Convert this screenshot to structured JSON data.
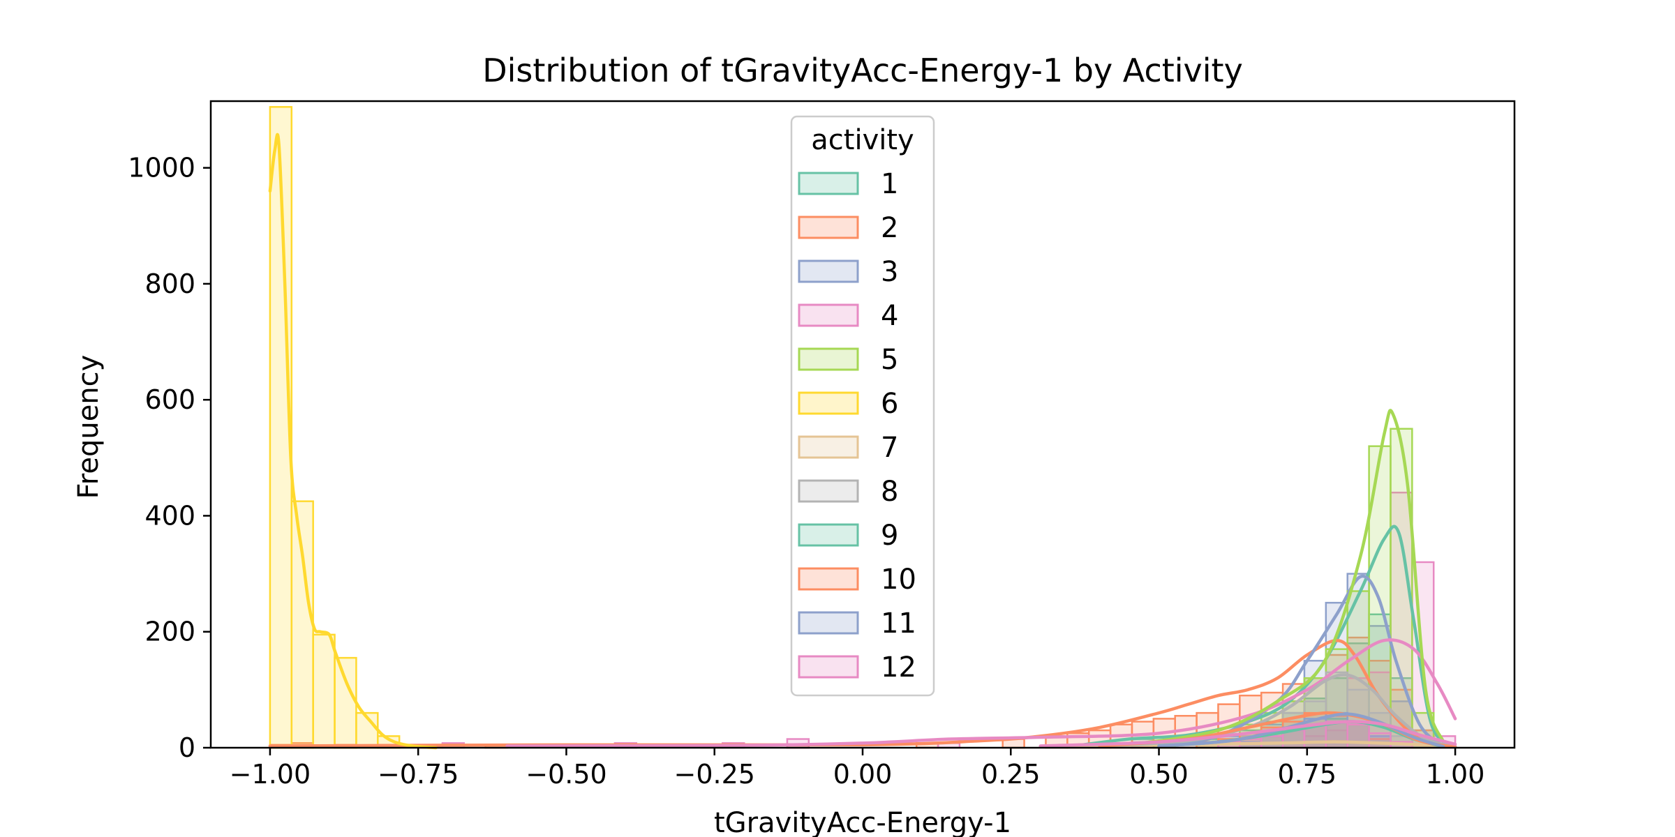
{
  "chart_data": {
    "type": "histogram",
    "title": "Distribution of tGravityAcc-Energy-1 by Activity",
    "xlabel": "tGravityAcc-Energy-1",
    "ylabel": "Frequency",
    "xlim": [
      -1.1,
      1.1
    ],
    "ylim": [
      0,
      1115
    ],
    "xticks": [
      -1.0,
      -0.75,
      -0.5,
      -0.25,
      0.0,
      0.25,
      0.5,
      0.75,
      1.0
    ],
    "xtick_labels": [
      "−1.00",
      "−0.75",
      "−0.50",
      "−0.25",
      "0.00",
      "0.25",
      "0.50",
      "0.75",
      "1.00"
    ],
    "yticks": [
      0,
      200,
      400,
      600,
      800,
      1000
    ],
    "ytick_labels": [
      "0",
      "200",
      "400",
      "600",
      "800",
      "1000"
    ],
    "bin_edges_range": [
      -1.0,
      1.0
    ],
    "bin_count": 55,
    "legend": {
      "title": "activity",
      "position": "upper center"
    },
    "kde": true,
    "series": [
      {
        "name": "1",
        "color": "#66c2a5",
        "bins": {
          "40": 15,
          "41": 12,
          "43": 15,
          "44": 20,
          "45": 30,
          "46": 45,
          "47": 60,
          "48": 85,
          "49": 120,
          "50": 180,
          "51": 230,
          "52": 120,
          "53": 30,
          "54": 5
        },
        "kde": [
          [
            0.35,
            2
          ],
          [
            0.45,
            15
          ],
          [
            0.55,
            22
          ],
          [
            0.65,
            45
          ],
          [
            0.72,
            80
          ],
          [
            0.78,
            150
          ],
          [
            0.84,
            270
          ],
          [
            0.88,
            360
          ],
          [
            0.905,
            370
          ],
          [
            0.93,
            220
          ],
          [
            0.96,
            40
          ],
          [
            1.0,
            2
          ]
        ]
      },
      {
        "name": "2",
        "color": "#fc8d62",
        "bins": {
          "0": 5,
          "1": 8,
          "3": 5,
          "5": 5,
          "7": 5,
          "10": 5,
          "20": 5,
          "24": 5,
          "30": 8,
          "34": 15,
          "36": 20,
          "37": 25,
          "38": 30,
          "39": 40,
          "40": 45,
          "41": 50,
          "42": 55,
          "43": 60,
          "44": 75,
          "45": 90,
          "46": 95,
          "47": 110,
          "48": 120,
          "49": 160,
          "50": 190,
          "51": 150,
          "52": 100,
          "53": 30
        },
        "kde": [
          [
            -1.0,
            3
          ],
          [
            -0.5,
            5
          ],
          [
            0.0,
            5
          ],
          [
            0.2,
            12
          ],
          [
            0.3,
            20
          ],
          [
            0.4,
            35
          ],
          [
            0.5,
            60
          ],
          [
            0.55,
            75
          ],
          [
            0.6,
            90
          ],
          [
            0.65,
            100
          ],
          [
            0.7,
            120
          ],
          [
            0.75,
            160
          ],
          [
            0.8,
            185
          ],
          [
            0.83,
            160
          ],
          [
            0.87,
            90
          ],
          [
            0.92,
            30
          ],
          [
            0.96,
            5
          ]
        ]
      },
      {
        "name": "3",
        "color": "#8da0cb",
        "bins": {
          "42": 10,
          "44": 20,
          "45": 25,
          "46": 40,
          "47": 80,
          "48": 150,
          "49": 250,
          "50": 300,
          "51": 210,
          "52": 80,
          "53": 15
        },
        "kde": [
          [
            0.5,
            5
          ],
          [
            0.6,
            20
          ],
          [
            0.7,
            80
          ],
          [
            0.75,
            150
          ],
          [
            0.8,
            230
          ],
          [
            0.84,
            295
          ],
          [
            0.87,
            260
          ],
          [
            0.9,
            150
          ],
          [
            0.94,
            40
          ],
          [
            0.98,
            3
          ]
        ]
      },
      {
        "name": "4",
        "color": "#e78ac3",
        "bins": {
          "8": 8,
          "16": 8,
          "21": 8,
          "24": 15,
          "31": 8,
          "41": 5,
          "47": 8,
          "48": 20,
          "49": 30,
          "50": 120,
          "51": 130,
          "52": 440,
          "53": 320,
          "54": 20
        },
        "kde": [
          [
            -0.6,
            3
          ],
          [
            -0.2,
            4
          ],
          [
            0.0,
            8
          ],
          [
            0.15,
            15
          ],
          [
            0.3,
            18
          ],
          [
            0.5,
            25
          ],
          [
            0.65,
            55
          ],
          [
            0.75,
            100
          ],
          [
            0.82,
            150
          ],
          [
            0.88,
            185
          ],
          [
            0.93,
            170
          ],
          [
            0.97,
            110
          ],
          [
            1.0,
            50
          ]
        ]
      },
      {
        "name": "5",
        "color": "#a6d854",
        "bins": {
          "41": 10,
          "43": 20,
          "45": 40,
          "46": 60,
          "47": 80,
          "48": 120,
          "49": 170,
          "50": 270,
          "51": 520,
          "52": 550,
          "53": 60
        },
        "kde": [
          [
            0.45,
            5
          ],
          [
            0.6,
            30
          ],
          [
            0.7,
            80
          ],
          [
            0.78,
            150
          ],
          [
            0.84,
            330
          ],
          [
            0.88,
            540
          ],
          [
            0.895,
            575
          ],
          [
            0.92,
            450
          ],
          [
            0.95,
            100
          ],
          [
            0.98,
            10
          ]
        ]
      },
      {
        "name": "6",
        "color": "#ffd92f",
        "bins": {
          "0": 1105,
          "1": 425,
          "2": 195,
          "3": 155,
          "4": 60,
          "5": 20
        },
        "kde": [
          [
            -1.0,
            960
          ],
          [
            -0.992,
            1030
          ],
          [
            -0.985,
            1040
          ],
          [
            -0.975,
            800
          ],
          [
            -0.965,
            500
          ],
          [
            -0.955,
            400
          ],
          [
            -0.945,
            330
          ],
          [
            -0.935,
            250
          ],
          [
            -0.925,
            205
          ],
          [
            -0.915,
            200
          ],
          [
            -0.9,
            195
          ],
          [
            -0.89,
            165
          ],
          [
            -0.87,
            110
          ],
          [
            -0.85,
            70
          ],
          [
            -0.83,
            45
          ],
          [
            -0.81,
            22
          ],
          [
            -0.79,
            10
          ],
          [
            -0.76,
            3
          ],
          [
            -0.72,
            0
          ]
        ]
      },
      {
        "name": "7",
        "color": "#e5c494",
        "bins": {
          "47": 8,
          "48": 10,
          "49": 12,
          "50": 10,
          "51": 8
        },
        "kde": [
          [
            0.3,
            2
          ],
          [
            0.5,
            5
          ],
          [
            0.7,
            8
          ],
          [
            0.8,
            10
          ],
          [
            0.9,
            7
          ],
          [
            1.0,
            2
          ]
        ]
      },
      {
        "name": "8",
        "color": "#b3b3b3",
        "bins": {
          "45": 20,
          "46": 35,
          "47": 60,
          "48": 80,
          "49": 130,
          "50": 100,
          "51": 60,
          "52": 20
        },
        "kde": [
          [
            0.4,
            3
          ],
          [
            0.55,
            12
          ],
          [
            0.65,
            35
          ],
          [
            0.72,
            70
          ],
          [
            0.78,
            115
          ],
          [
            0.82,
            125
          ],
          [
            0.86,
            100
          ],
          [
            0.9,
            55
          ],
          [
            0.95,
            15
          ],
          [
            1.0,
            2
          ]
        ]
      },
      {
        "name": "9",
        "color": "#66c2a5",
        "bins": {
          "45": 10,
          "46": 20,
          "47": 30,
          "48": 40,
          "49": 50,
          "50": 40,
          "51": 20
        },
        "kde": [
          [
            0.5,
            3
          ],
          [
            0.6,
            10
          ],
          [
            0.7,
            25
          ],
          [
            0.78,
            40
          ],
          [
            0.83,
            45
          ],
          [
            0.88,
            35
          ],
          [
            0.93,
            15
          ],
          [
            0.98,
            2
          ]
        ]
      },
      {
        "name": "10",
        "color": "#fc8d62",
        "bins": {
          "43": 10,
          "44": 15,
          "45": 25,
          "46": 35,
          "47": 45,
          "48": 60,
          "49": 55,
          "50": 40,
          "51": 15
        },
        "kde": [
          [
            0.4,
            3
          ],
          [
            0.55,
            15
          ],
          [
            0.65,
            35
          ],
          [
            0.72,
            50
          ],
          [
            0.78,
            60
          ],
          [
            0.83,
            55
          ],
          [
            0.88,
            40
          ],
          [
            0.94,
            12
          ],
          [
            1.0,
            1
          ]
        ]
      },
      {
        "name": "11",
        "color": "#8da0cb",
        "bins": {
          "45": 10,
          "46": 20,
          "47": 35,
          "48": 50,
          "49": 60,
          "50": 45,
          "51": 20
        },
        "kde": [
          [
            0.5,
            3
          ],
          [
            0.62,
            12
          ],
          [
            0.7,
            30
          ],
          [
            0.77,
            50
          ],
          [
            0.82,
            58
          ],
          [
            0.87,
            45
          ],
          [
            0.93,
            18
          ],
          [
            0.98,
            2
          ]
        ]
      },
      {
        "name": "12",
        "color": "#e78ac3",
        "bins": {
          "44": 10,
          "45": 15,
          "46": 20,
          "47": 30,
          "48": 40,
          "49": 45,
          "50": 40,
          "51": 25,
          "52": 10
        },
        "kde": [
          [
            0.3,
            3
          ],
          [
            0.5,
            10
          ],
          [
            0.65,
            25
          ],
          [
            0.75,
            38
          ],
          [
            0.82,
            45
          ],
          [
            0.88,
            40
          ],
          [
            0.94,
            22
          ],
          [
            1.0,
            6
          ]
        ]
      }
    ]
  }
}
